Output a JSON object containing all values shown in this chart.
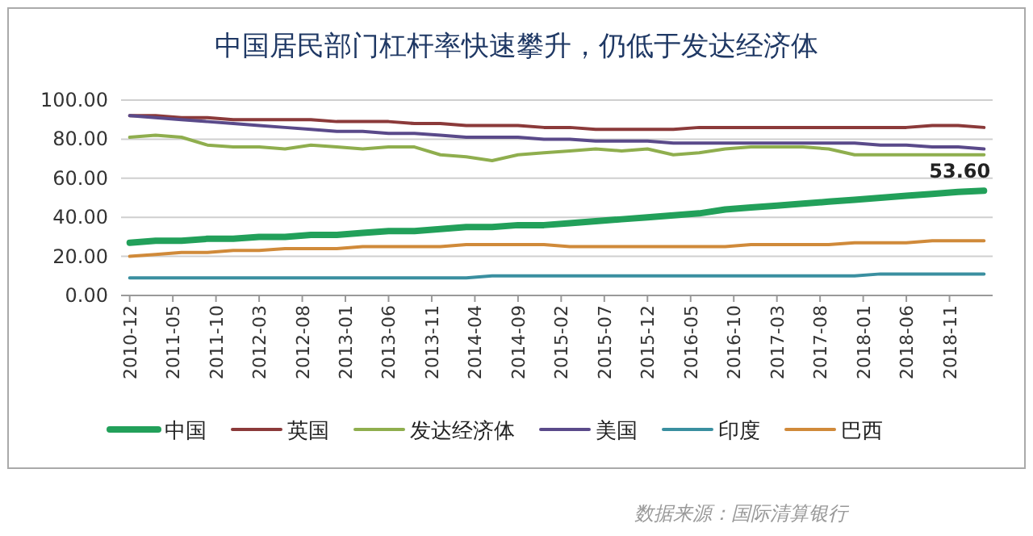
{
  "chart_data": {
    "type": "line",
    "title": "中国居民部门杠杆率快速攀升，仍低于发达经济体",
    "x": [
      "2010-12",
      "2011-03",
      "2011-06",
      "2011-09",
      "2011-12",
      "2012-03",
      "2012-06",
      "2012-09",
      "2012-12",
      "2013-03",
      "2013-06",
      "2013-09",
      "2013-12",
      "2014-03",
      "2014-06",
      "2014-09",
      "2014-12",
      "2015-03",
      "2015-06",
      "2015-09",
      "2015-12",
      "2016-03",
      "2016-06",
      "2016-09",
      "2016-12",
      "2017-03",
      "2017-06",
      "2017-09",
      "2017-12",
      "2018-03",
      "2018-06",
      "2018-09",
      "2018-12",
      "2019-03"
    ],
    "series": [
      {
        "name": "中国",
        "color": "#22a05a",
        "values": [
          27,
          28,
          28,
          29,
          29,
          30,
          30,
          31,
          31,
          32,
          33,
          33,
          34,
          35,
          35,
          36,
          36,
          37,
          38,
          39,
          40,
          41,
          42,
          44,
          45,
          46,
          47,
          48,
          49,
          50,
          51,
          52,
          53,
          53.6
        ]
      },
      {
        "name": "英国",
        "color": "#8b3a3a",
        "values": [
          92,
          92,
          91,
          91,
          90,
          90,
          90,
          90,
          89,
          89,
          89,
          88,
          88,
          87,
          87,
          87,
          86,
          86,
          85,
          85,
          85,
          85,
          86,
          86,
          86,
          86,
          86,
          86,
          86,
          86,
          86,
          87,
          87,
          86
        ]
      },
      {
        "name": "发达经济体",
        "color": "#8fae4e",
        "values": [
          81,
          82,
          81,
          77,
          76,
          76,
          75,
          77,
          76,
          75,
          76,
          76,
          72,
          71,
          69,
          72,
          73,
          74,
          75,
          74,
          75,
          72,
          73,
          75,
          76,
          76,
          76,
          75,
          72,
          72,
          72,
          72,
          72,
          72
        ]
      },
      {
        "name": "美国",
        "color": "#5a4a8a",
        "values": [
          92,
          91,
          90,
          89,
          88,
          87,
          86,
          85,
          84,
          84,
          83,
          83,
          82,
          81,
          81,
          81,
          80,
          80,
          79,
          79,
          79,
          78,
          78,
          78,
          78,
          78,
          78,
          78,
          78,
          77,
          77,
          76,
          76,
          75
        ]
      },
      {
        "name": "印度",
        "color": "#3a8fa0",
        "values": [
          9,
          9,
          9,
          9,
          9,
          9,
          9,
          9,
          9,
          9,
          9,
          9,
          9,
          9,
          10,
          10,
          10,
          10,
          10,
          10,
          10,
          10,
          10,
          10,
          10,
          10,
          10,
          10,
          10,
          11,
          11,
          11,
          11,
          11
        ]
      },
      {
        "name": "巴西",
        "color": "#d08a3a",
        "values": [
          20,
          21,
          22,
          22,
          23,
          23,
          24,
          24,
          24,
          25,
          25,
          25,
          25,
          26,
          26,
          26,
          26,
          25,
          25,
          25,
          25,
          25,
          25,
          25,
          26,
          26,
          26,
          26,
          27,
          27,
          27,
          28,
          28,
          28
        ]
      }
    ],
    "xlim": [
      "2010-11",
      "2019-04"
    ],
    "xticks": [
      "2010-12",
      "2011-05",
      "2011-10",
      "2012-03",
      "2012-08",
      "2013-01",
      "2013-06",
      "2013-11",
      "2014-04",
      "2014-09",
      "2015-02",
      "2015-07",
      "2015-12",
      "2016-05",
      "2016-10",
      "2017-03",
      "2017-08",
      "2018-01",
      "2018-06",
      "2018-11"
    ],
    "ylim": [
      0,
      100
    ],
    "yticks": [
      {
        "value": 0,
        "label": "0.00"
      },
      {
        "value": 20,
        "label": "20.00"
      },
      {
        "value": 40,
        "label": "40.00"
      },
      {
        "value": 60,
        "label": "60.00"
      },
      {
        "value": 80,
        "label": "80.00"
      },
      {
        "value": 100,
        "label": "100.00"
      }
    ],
    "grid": "y",
    "legend": "bottom",
    "marker": "none",
    "line_style": "solid",
    "annotations": [
      {
        "text": "53.60",
        "x": "2019-03",
        "y": 53.6
      },
      "数据来源：国际清算银行"
    ]
  }
}
